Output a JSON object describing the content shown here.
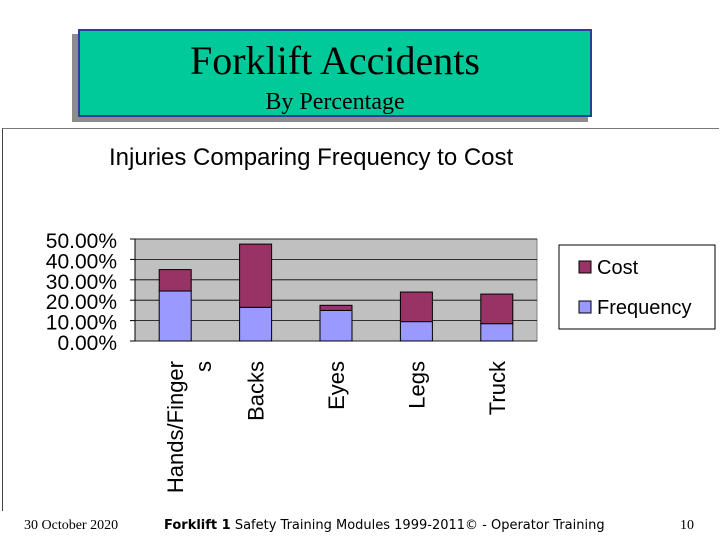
{
  "slide": {
    "title": "Forklift Accidents",
    "subtitle": "By Percentage"
  },
  "footer": {
    "date": "30 October 2020",
    "brand": "Forklift 1",
    "text": "Safety Training Modules 1999-2011© - Operator Training",
    "page": "10"
  },
  "colors": {
    "title_bg": "#00c99a",
    "title_border": "#2a3f9a",
    "plot_bg": "#c0c0c0",
    "cost": "#993366",
    "frequency": "#9999ff"
  },
  "chart_data": {
    "type": "bar",
    "stacked": true,
    "title": "Injuries Comparing Frequency to Cost",
    "categories": [
      "Hands/Fingers",
      "Backs",
      "Eyes",
      "Legs",
      "Truck"
    ],
    "series": [
      {
        "name": "Frequency",
        "values": [
          24.5,
          16.5,
          15.0,
          9.5,
          8.5
        ]
      },
      {
        "name": "Cost",
        "values": [
          10.5,
          31.0,
          2.5,
          14.5,
          14.5
        ]
      }
    ],
    "y_ticks": [
      "50.00%",
      "40.00%",
      "30.00%",
      "20.00%",
      "10.00%",
      "0.00%"
    ],
    "ylim": [
      0,
      50
    ],
    "grid": true,
    "legend": "right"
  }
}
